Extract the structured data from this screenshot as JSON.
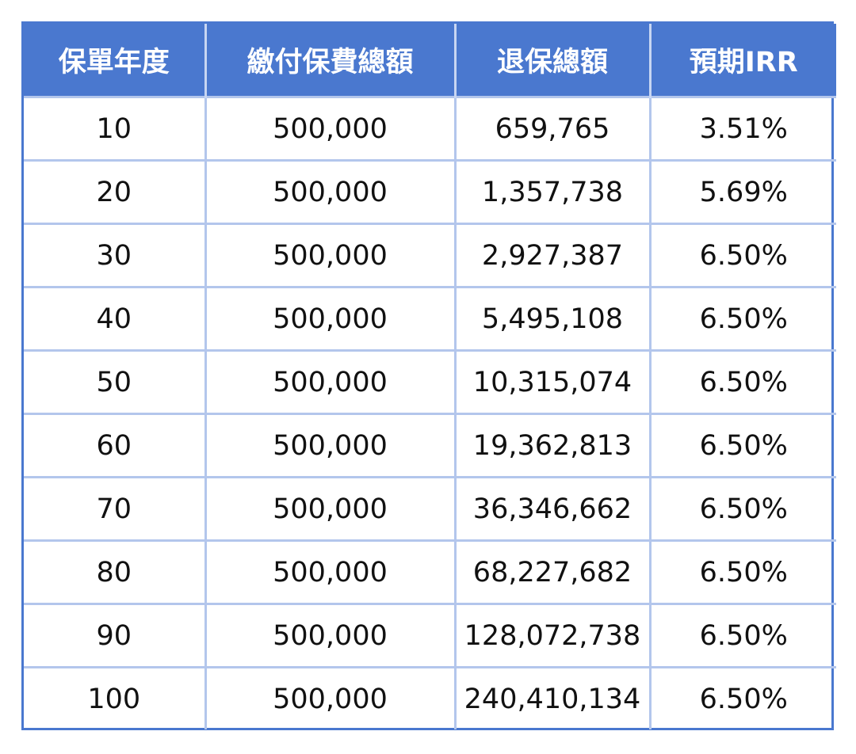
{
  "table": {
    "headers": [
      "保單年度",
      "繳付保費總額",
      "退保總額",
      "預期IRR"
    ],
    "rows": [
      [
        "10",
        "500,000",
        "659,765",
        "3.51%"
      ],
      [
        "20",
        "500,000",
        "1,357,738",
        "5.69%"
      ],
      [
        "30",
        "500,000",
        "2,927,387",
        "6.50%"
      ],
      [
        "40",
        "500,000",
        "5,495,108",
        "6.50%"
      ],
      [
        "50",
        "500,000",
        "10,315,074",
        "6.50%"
      ],
      [
        "60",
        "500,000",
        "19,362,813",
        "6.50%"
      ],
      [
        "70",
        "500,000",
        "36,346,662",
        "6.50%"
      ],
      [
        "80",
        "500,000",
        "68,227,682",
        "6.50%"
      ],
      [
        "90",
        "500,000",
        "128,072,738",
        "6.50%"
      ],
      [
        "100",
        "500,000",
        "240,410,134",
        "6.50%"
      ]
    ]
  }
}
